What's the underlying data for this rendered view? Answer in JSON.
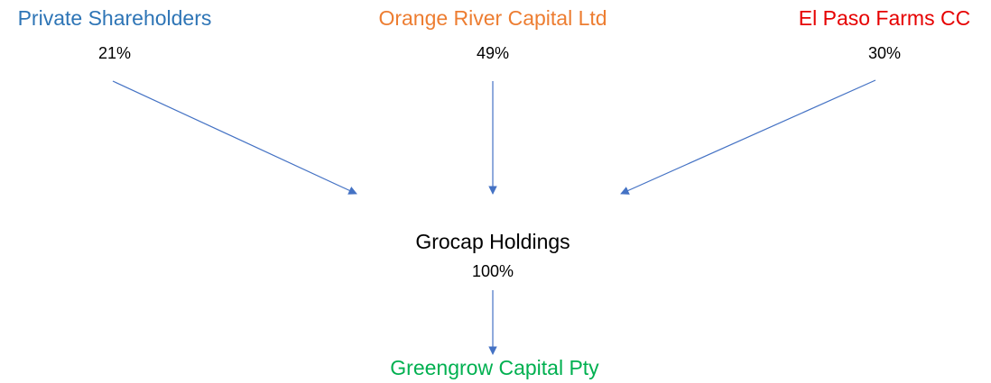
{
  "nodes": [
    {
      "label": "Private Shareholders",
      "share": "21%"
    },
    {
      "label": "Orange River Capital Ltd",
      "share": "49%"
    },
    {
      "label": "El Paso Farms CC",
      "share": "30%"
    },
    {
      "label": "Grocap Holdings",
      "share": "100%"
    },
    {
      "label": "Greengrow Capital Pty"
    }
  ]
}
